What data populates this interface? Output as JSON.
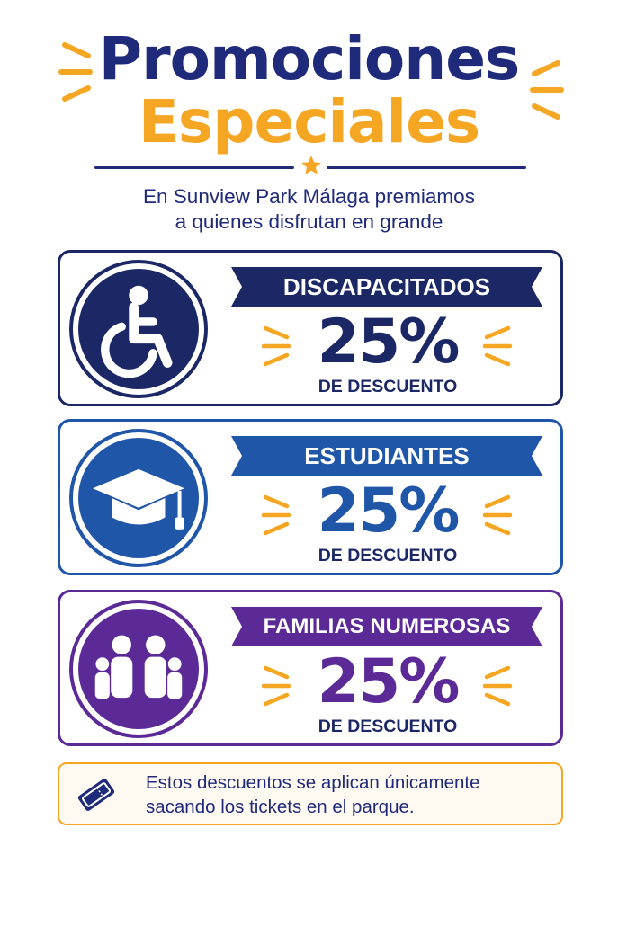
{
  "header": {
    "title_line1": "Promociones",
    "title_line2": "Especiales",
    "subtitle_line1": "En Sunview Park Málaga premiamos",
    "subtitle_line2": "a quienes disfrutan en grande"
  },
  "colors": {
    "navy": "#1c2766",
    "blue": "#1f56a8",
    "purple": "#5b2a97",
    "orange": "#f5a623"
  },
  "promotions": [
    {
      "category": "DISCAPACITADOS",
      "discount": "25%",
      "discount_label": "DE DESCUENTO",
      "icon": "wheelchair-icon"
    },
    {
      "category": "ESTUDIANTES",
      "discount": "25%",
      "discount_label": "DE DESCUENTO",
      "icon": "graduation-cap-icon"
    },
    {
      "category": "FAMILIAS NUMEROSAS",
      "discount": "25%",
      "discount_label": "DE DESCUENTO",
      "icon": "family-icon"
    }
  ],
  "note": {
    "icon": "ticket-icon",
    "line1": "Estos descuentos se aplican únicamente",
    "line2": "sacando los tickets en el parque."
  }
}
